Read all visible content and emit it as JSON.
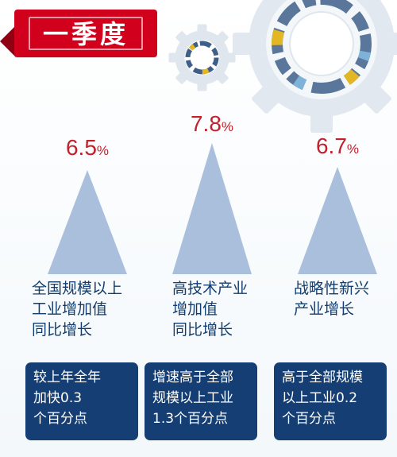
{
  "title": "一季度",
  "chart_data": {
    "type": "bar",
    "categories": [
      "全国规模以上工业增加值同比增长",
      "高技术产业增加值同比增长",
      "战略性新兴产业增长"
    ],
    "values": [
      6.5,
      7.8,
      6.7
    ],
    "unit": "%",
    "ylim": [
      0,
      7.8
    ]
  },
  "items": [
    {
      "value": "6.5",
      "unit": "%",
      "desc": [
        "全国规模以上",
        "工业增加值",
        "同比增长"
      ],
      "note": [
        "较上年全年",
        "加快0.3",
        "个百分点"
      ]
    },
    {
      "value": "7.8",
      "unit": "%",
      "desc": [
        "高技术产业",
        "增加值",
        "同比增长"
      ],
      "note": [
        "增速高于全部",
        "规模以上工业",
        "1.3个百分点"
      ]
    },
    {
      "value": "6.7",
      "unit": "%",
      "desc": [
        "战略性新兴",
        "产业增长"
      ],
      "note": [
        "高于全部规模",
        "以上工业0.2",
        "个百分点"
      ]
    }
  ],
  "colors": {
    "title_bg": "#d1001c",
    "value_text": "#c2202b",
    "triangle": "#a9bfdc",
    "desc_text": "#123d6e",
    "note_bg": "#153f74",
    "gear": "#dfe6ee"
  }
}
